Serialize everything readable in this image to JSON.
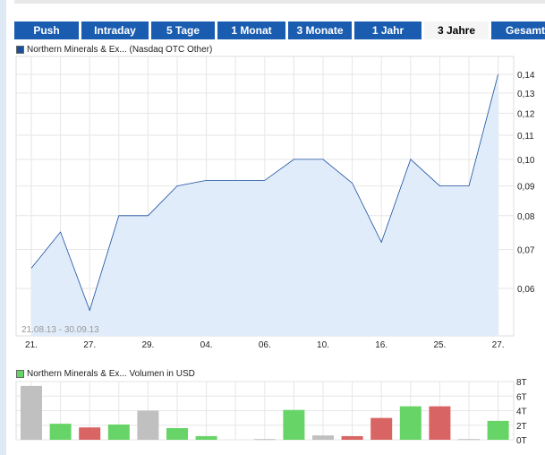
{
  "tabs": [
    {
      "label": "Push"
    },
    {
      "label": "Intraday"
    },
    {
      "label": "5 Tage"
    },
    {
      "label": "1 Monat"
    },
    {
      "label": "3 Monate"
    },
    {
      "label": "1 Jahr"
    },
    {
      "label": "3 Jahre",
      "active": true
    },
    {
      "label": "Gesamt"
    }
  ],
  "chart_data": [
    {
      "type": "area",
      "legend": "Northern Minerals & Ex... (Nasdaq OTC Other)",
      "color": "#1a4f9c",
      "fill": "#e1ecfb",
      "date_range": "21.08.13 - 30.09.13",
      "yscale": "log",
      "ylim": [
        0.05,
        0.145
      ],
      "yticks": [
        "0,14",
        "0,13",
        "0,12",
        "0,11",
        "0,10",
        "0,09",
        "0,08",
        "0,07",
        "0,06"
      ],
      "ytick_values": [
        0.14,
        0.13,
        0.12,
        0.11,
        0.1,
        0.09,
        0.08,
        0.07,
        0.06
      ],
      "xtick_labels": [
        "21.",
        "27.",
        "29.",
        "04.",
        "06.",
        "10.",
        "16.",
        "25.",
        "27."
      ],
      "values": [
        0.065,
        0.075,
        0.055,
        0.08,
        0.08,
        0.09,
        0.092,
        0.092,
        0.092,
        0.1,
        0.1,
        0.091,
        0.072,
        0.1,
        0.09,
        0.09,
        0.14
      ]
    },
    {
      "type": "bar",
      "legend": "Northern Minerals & Ex... Volumen in USD",
      "legend_color": "#66d466",
      "ylim": [
        0,
        8
      ],
      "yticks": [
        "8T",
        "6T",
        "4T",
        "2T",
        "0T"
      ],
      "ytick_values": [
        8,
        6,
        4,
        2,
        0
      ],
      "colors": {
        "up": "#66d466",
        "down": "#d96464",
        "flat": "#c0c0c0"
      },
      "values": [
        7.4,
        2.2,
        1.7,
        2.1,
        4.0,
        1.6,
        0.5,
        null,
        0.1,
        4.1,
        0.6,
        0.5,
        3.0,
        4.6,
        4.6,
        0.1,
        2.6
      ],
      "directions": [
        "flat",
        "up",
        "down",
        "up",
        "flat",
        "up",
        "up",
        null,
        "flat",
        "up",
        "flat",
        "down",
        "down",
        "up",
        "down",
        "flat",
        "up"
      ]
    }
  ]
}
